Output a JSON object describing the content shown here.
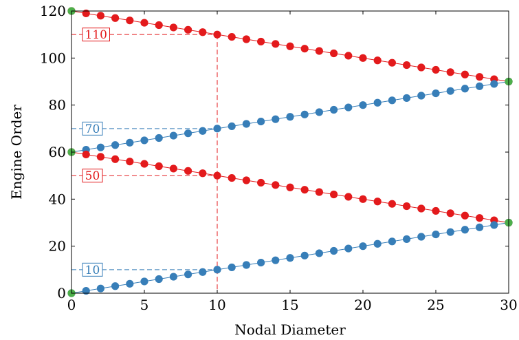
{
  "chart_data": {
    "type": "scatter",
    "title": "",
    "xlabel": "Nodal Diameter",
    "ylabel": "Engine Order",
    "xlim": [
      0,
      30
    ],
    "ylim": [
      0,
      120
    ],
    "xticks": [
      0,
      5,
      10,
      15,
      20,
      25,
      30
    ],
    "yticks": [
      0,
      20,
      40,
      60,
      80,
      100,
      120
    ],
    "grid": false,
    "legend": "none",
    "colors": {
      "red": "#e31a1c",
      "blue": "#377eb8",
      "green": "#4daf4a"
    },
    "series": [
      {
        "color": "red",
        "x": [
          0,
          1,
          2,
          3,
          4,
          5,
          6,
          7,
          8,
          9,
          10,
          11,
          12,
          13,
          14,
          15,
          16,
          17,
          18,
          19,
          20,
          21,
          22,
          23,
          24,
          25,
          26,
          27,
          28,
          29,
          30
        ],
        "y": [
          120,
          119,
          118,
          117,
          116,
          115,
          114,
          113,
          112,
          111,
          110,
          109,
          108,
          107,
          106,
          105,
          104,
          103,
          102,
          101,
          100,
          99,
          98,
          97,
          96,
          95,
          94,
          93,
          92,
          91,
          90
        ]
      },
      {
        "color": "blue",
        "x": [
          0,
          1,
          2,
          3,
          4,
          5,
          6,
          7,
          8,
          9,
          10,
          11,
          12,
          13,
          14,
          15,
          16,
          17,
          18,
          19,
          20,
          21,
          22,
          23,
          24,
          25,
          26,
          27,
          28,
          29,
          30
        ],
        "y": [
          60,
          61,
          62,
          63,
          64,
          65,
          66,
          67,
          68,
          69,
          70,
          71,
          72,
          73,
          74,
          75,
          76,
          77,
          78,
          79,
          80,
          81,
          82,
          83,
          84,
          85,
          86,
          87,
          88,
          89,
          90
        ]
      },
      {
        "color": "red",
        "x": [
          0,
          1,
          2,
          3,
          4,
          5,
          6,
          7,
          8,
          9,
          10,
          11,
          12,
          13,
          14,
          15,
          16,
          17,
          18,
          19,
          20,
          21,
          22,
          23,
          24,
          25,
          26,
          27,
          28,
          29,
          30
        ],
        "y": [
          60,
          59,
          58,
          57,
          56,
          55,
          54,
          53,
          52,
          51,
          50,
          49,
          48,
          47,
          46,
          45,
          44,
          43,
          42,
          41,
          40,
          39,
          38,
          37,
          36,
          35,
          34,
          33,
          32,
          31,
          30
        ]
      },
      {
        "color": "blue",
        "x": [
          0,
          1,
          2,
          3,
          4,
          5,
          6,
          7,
          8,
          9,
          10,
          11,
          12,
          13,
          14,
          15,
          16,
          17,
          18,
          19,
          20,
          21,
          22,
          23,
          24,
          25,
          26,
          27,
          28,
          29,
          30
        ],
        "y": [
          0,
          1,
          2,
          3,
          4,
          5,
          6,
          7,
          8,
          9,
          10,
          11,
          12,
          13,
          14,
          15,
          16,
          17,
          18,
          19,
          20,
          21,
          22,
          23,
          24,
          25,
          26,
          27,
          28,
          29,
          30
        ]
      }
    ],
    "endpoints": [
      {
        "x": 0,
        "y": 120
      },
      {
        "x": 0,
        "y": 60
      },
      {
        "x": 0,
        "y": 0
      },
      {
        "x": 30,
        "y": 90
      },
      {
        "x": 30,
        "y": 30
      }
    ],
    "annotations": [
      {
        "label": "110",
        "x": 10,
        "y": 110,
        "color": "red"
      },
      {
        "label": "70",
        "x": 10,
        "y": 70,
        "color": "blue"
      },
      {
        "label": "50",
        "x": 10,
        "y": 50,
        "color": "red"
      },
      {
        "label": "10",
        "x": 10,
        "y": 10,
        "color": "blue"
      }
    ]
  }
}
